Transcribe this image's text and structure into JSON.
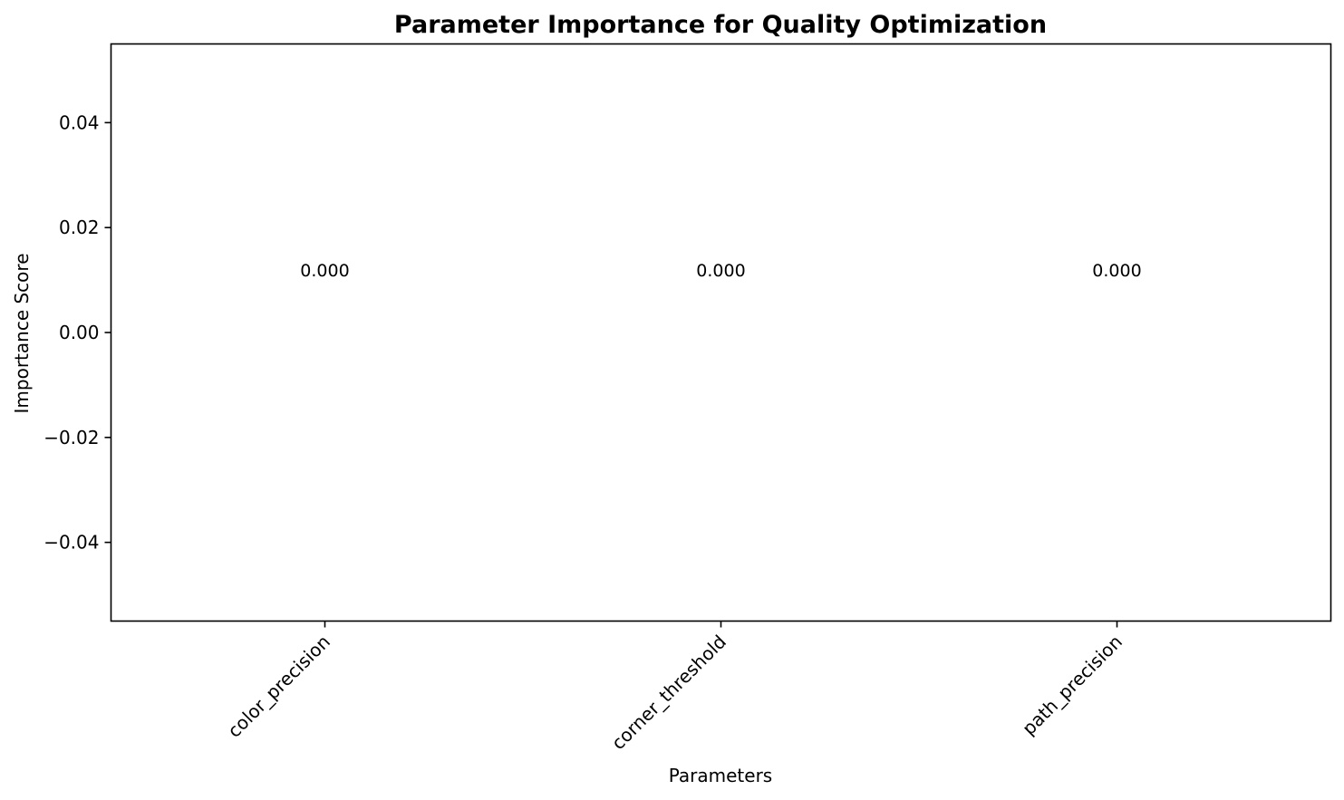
{
  "chart_data": {
    "type": "bar",
    "title": "Parameter Importance for Quality Optimization",
    "xlabel": "Parameters",
    "ylabel": "Importance Score",
    "categories": [
      "color_precision",
      "corner_threshold",
      "path_precision"
    ],
    "values": [
      0.0,
      0.0,
      0.0
    ],
    "value_labels": [
      "0.000",
      "0.000",
      "0.000"
    ],
    "ylim": [
      -0.055,
      0.055
    ],
    "yticks": [
      -0.04,
      -0.02,
      0.0,
      0.02,
      0.04
    ],
    "ytick_labels": [
      "−0.04",
      "−0.02",
      "0.00",
      "0.02",
      "0.04"
    ],
    "grid": false,
    "bar_color": "#1f77b4"
  }
}
